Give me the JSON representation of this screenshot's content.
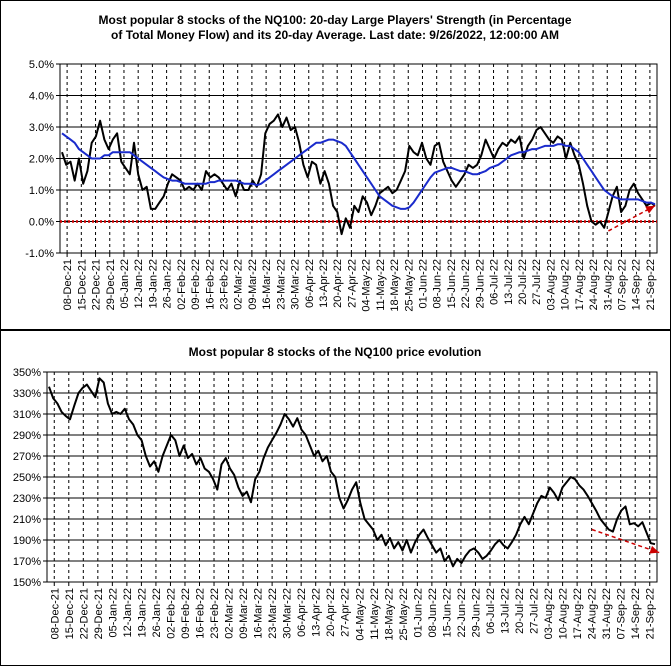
{
  "chart_data": [
    {
      "type": "line",
      "title_line1": "Most popular 8 stocks of the NQ100: 20-day Large Players' Strength (in Percentage",
      "title_line2": "of Total Money Flow) and its 20-day Average. Last date: 9/26/2022, 12:00:00 AM",
      "ylim": [
        -1.0,
        5.0
      ],
      "ytick_labels": [
        "5.0%",
        "4.0%",
        "3.0%",
        "2.0%",
        "1.0%",
        "0.0%",
        "-1.0%"
      ],
      "ytick_values": [
        5,
        4,
        3,
        2,
        1,
        0,
        -1
      ],
      "xtick_labels": [
        "08-Dec-21",
        "15-Dec-21",
        "22-Dec-21",
        "29-Dec-21",
        "05-Jan-22",
        "12-Jan-22",
        "19-Jan-22",
        "26-Jan-22",
        "02-Feb-22",
        "09-Feb-22",
        "16-Feb-22",
        "23-Feb-22",
        "02-Mar-22",
        "09-Mar-22",
        "16-Mar-22",
        "23-Mar-22",
        "30-Mar-22",
        "06-Apr-22",
        "13-Apr-22",
        "20-Apr-22",
        "27-Apr-22",
        "04-May-22",
        "11-May-22",
        "18-May-22",
        "25-May-22",
        "01-Jun-22",
        "08-Jun-22",
        "15-Jun-22",
        "22-Jun-22",
        "29-Jun-22",
        "06-Jul-22",
        "13-Jul-22",
        "20-Jul-22",
        "27-Jul-22",
        "03-Aug-22",
        "10-Aug-22",
        "17-Aug-22",
        "24-Aug-22",
        "31-Aug-22",
        "07-Sep-22",
        "14-Sep-22",
        "21-Sep-22"
      ],
      "grid": true,
      "series": [
        {
          "role": "strength",
          "color": "#000000",
          "values": [
            2.2,
            1.8,
            1.9,
            1.3,
            2.0,
            1.2,
            1.6,
            2.5,
            2.7,
            3.2,
            2.6,
            2.3,
            2.6,
            2.8,
            1.9,
            1.7,
            1.5,
            2.5,
            1.5,
            1.0,
            1.1,
            0.4,
            0.4,
            0.6,
            0.8,
            1.2,
            1.5,
            1.4,
            1.3,
            1.0,
            1.1,
            1.0,
            1.2,
            1.0,
            1.6,
            1.4,
            1.5,
            1.4,
            1.2,
            1.0,
            1.2,
            0.8,
            1.3,
            1.0,
            1.0,
            1.3,
            1.1,
            1.5,
            2.8,
            3.1,
            3.2,
            3.4,
            3.0,
            3.3,
            2.9,
            3.0,
            2.5,
            1.8,
            1.4,
            1.9,
            1.8,
            1.2,
            1.6,
            1.2,
            0.5,
            0.3,
            -0.4,
            0.1,
            -0.2,
            0.5,
            0.3,
            0.8,
            0.6,
            0.2,
            0.5,
            0.9,
            1.0,
            1.1,
            0.9,
            1.0,
            1.3,
            1.6,
            2.4,
            2.2,
            2.1,
            2.5,
            2.0,
            1.8,
            2.4,
            2.5,
            1.9,
            1.6,
            1.3,
            1.1,
            1.3,
            1.5,
            1.8,
            1.7,
            1.8,
            2.1,
            2.6,
            2.3,
            2.0,
            2.3,
            2.5,
            2.4,
            2.6,
            2.5,
            2.7,
            2.0,
            2.4,
            2.6,
            2.9,
            3.0,
            2.8,
            2.6,
            2.5,
            2.7,
            2.6,
            2.0,
            2.5,
            2.1,
            1.8,
            1.2,
            0.5,
            0.0,
            -0.1,
            0.0,
            -0.2,
            0.3,
            0.8,
            1.1,
            0.3,
            0.5,
            1.0,
            1.2,
            0.9,
            0.7,
            0.5,
            0.6,
            0.5
          ]
        },
        {
          "role": "20-day average",
          "color": "#1a2bcc",
          "values": [
            2.8,
            2.7,
            2.6,
            2.5,
            2.3,
            2.2,
            2.1,
            2.0,
            2.0,
            2.0,
            2.1,
            2.1,
            2.2,
            2.2,
            2.2,
            2.2,
            2.2,
            2.1,
            2.0,
            1.9,
            1.8,
            1.7,
            1.6,
            1.5,
            1.4,
            1.35,
            1.3,
            1.3,
            1.25,
            1.2,
            1.2,
            1.2,
            1.2,
            1.2,
            1.2,
            1.25,
            1.25,
            1.3,
            1.3,
            1.3,
            1.3,
            1.3,
            1.25,
            1.2,
            1.2,
            1.2,
            1.15,
            1.2,
            1.3,
            1.4,
            1.5,
            1.6,
            1.7,
            1.8,
            1.9,
            2.0,
            2.1,
            2.2,
            2.3,
            2.4,
            2.5,
            2.5,
            2.55,
            2.6,
            2.6,
            2.55,
            2.5,
            2.4,
            2.2,
            2.0,
            1.8,
            1.6,
            1.4,
            1.2,
            1.0,
            0.8,
            0.7,
            0.6,
            0.5,
            0.45,
            0.4,
            0.4,
            0.45,
            0.6,
            0.8,
            1.0,
            1.2,
            1.4,
            1.55,
            1.6,
            1.65,
            1.7,
            1.7,
            1.65,
            1.6,
            1.6,
            1.55,
            1.5,
            1.5,
            1.55,
            1.6,
            1.7,
            1.75,
            1.8,
            1.9,
            2.0,
            2.1,
            2.15,
            2.2,
            2.2,
            2.25,
            2.3,
            2.3,
            2.35,
            2.4,
            2.4,
            2.4,
            2.45,
            2.45,
            2.4,
            2.4,
            2.3,
            2.2,
            2.0,
            1.8,
            1.6,
            1.4,
            1.2,
            1.0,
            0.9,
            0.8,
            0.75,
            0.7,
            0.7,
            0.7,
            0.7,
            0.7,
            0.65,
            0.6,
            0.6,
            0.55
          ]
        }
      ],
      "reference_line": {
        "value": 0.0,
        "color": "#cc0000"
      },
      "trend_arrow": {
        "from": [
          129,
          -0.3
        ],
        "to": [
          140,
          0.5
        ],
        "color": "#cc0000"
      }
    },
    {
      "type": "line",
      "title": "Most popular 8 stocks of the NQ100 price evolution",
      "ylim": [
        150,
        350
      ],
      "ytick_labels": [
        "350%",
        "330%",
        "310%",
        "290%",
        "270%",
        "250%",
        "230%",
        "210%",
        "190%",
        "170%",
        "150%"
      ],
      "ytick_values": [
        350,
        330,
        310,
        290,
        270,
        250,
        230,
        210,
        190,
        170,
        150
      ],
      "xtick_labels": [
        "08-Dec-21",
        "15-Dec-21",
        "22-Dec-21",
        "29-Dec-21",
        "05-Jan-22",
        "12-Jan-22",
        "19-Jan-22",
        "26-Jan-22",
        "02-Feb-22",
        "09-Feb-22",
        "16-Feb-22",
        "23-Feb-22",
        "02-Mar-22",
        "09-Mar-22",
        "16-Mar-22",
        "23-Mar-22",
        "30-Mar-22",
        "06-Apr-22",
        "13-Apr-22",
        "20-Apr-22",
        "27-Apr-22",
        "04-May-22",
        "11-May-22",
        "18-May-22",
        "25-May-22",
        "01-Jun-22",
        "08-Jun-22",
        "15-Jun-22",
        "22-Jun-22",
        "29-Jun-22",
        "06-Jul-22",
        "13-Jul-22",
        "20-Jul-22",
        "27-Jul-22",
        "03-Aug-22",
        "10-Aug-22",
        "17-Aug-22",
        "24-Aug-22",
        "31-Aug-22",
        "07-Sep-22",
        "14-Sep-22",
        "21-Sep-22"
      ],
      "grid": true,
      "series": [
        {
          "role": "price",
          "color": "#000000",
          "values": [
            336,
            325,
            320,
            312,
            308,
            305,
            318,
            330,
            335,
            338,
            332,
            326,
            344,
            340,
            320,
            310,
            312,
            310,
            315,
            305,
            300,
            290,
            285,
            270,
            260,
            265,
            255,
            270,
            280,
            290,
            285,
            270,
            280,
            268,
            272,
            262,
            268,
            258,
            255,
            248,
            238,
            262,
            268,
            258,
            252,
            240,
            232,
            236,
            226,
            248,
            255,
            268,
            278,
            285,
            292,
            300,
            310,
            305,
            298,
            306,
            295,
            290,
            280,
            270,
            275,
            265,
            270,
            255,
            250,
            230,
            220,
            228,
            238,
            245,
            225,
            210,
            205,
            200,
            190,
            195,
            185,
            192,
            182,
            188,
            180,
            190,
            178,
            188,
            195,
            200,
            192,
            185,
            178,
            182,
            170,
            175,
            165,
            172,
            168,
            175,
            180,
            182,
            178,
            172,
            175,
            180,
            186,
            190,
            185,
            182,
            188,
            195,
            205,
            212,
            205,
            215,
            225,
            232,
            230,
            240,
            235,
            228,
            240,
            245,
            250,
            248,
            242,
            238,
            232,
            225,
            218,
            210,
            205,
            200,
            198,
            210,
            218,
            222,
            205,
            206,
            203,
            207,
            197,
            187,
            186
          ]
        }
      ],
      "trend_arrow": {
        "from": [
          129,
          200
        ],
        "to": [
          145,
          178
        ],
        "color": "#cc0000"
      }
    }
  ]
}
